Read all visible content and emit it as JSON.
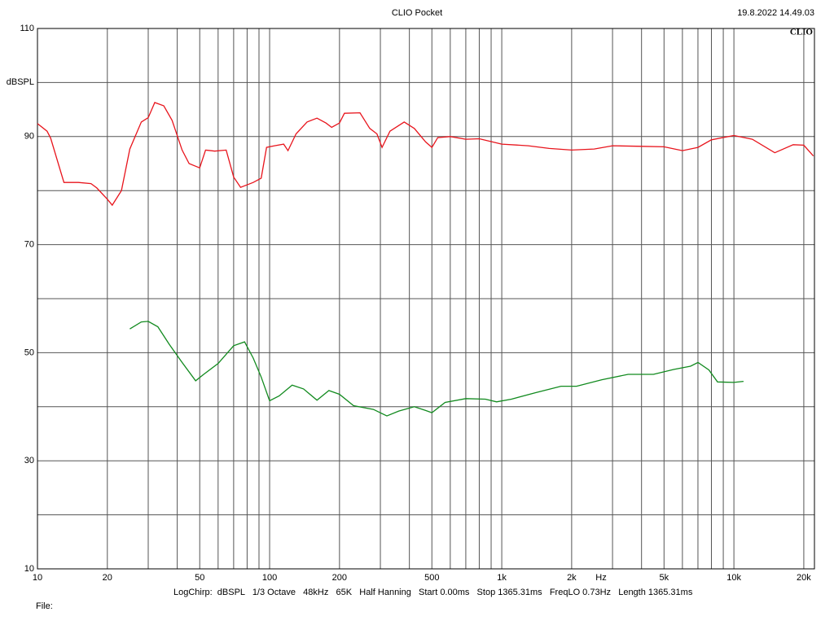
{
  "chart_data": {
    "type": "line",
    "title": "CLIO Pocket",
    "timestamp": "19.8.2022 14.49.03",
    "logo": "CLIO",
    "y_label": "dBSPL",
    "x_label": "Hz",
    "settings": "LogChirp:  dBSPL   1/3 Octave   48kHz   65K   Half Hanning   Start 0.00ms   Stop 1365.31ms   FreqLO 0.73Hz   Length 1365.31ms",
    "file_label": "File:",
    "xscale": "log",
    "xlim": [
      10,
      22230
    ],
    "ylim": [
      10,
      110
    ],
    "grid": true,
    "xticks": [
      10,
      20,
      50,
      100,
      200,
      500,
      {
        "value": 1000,
        "label": "1k"
      },
      {
        "value": 2000,
        "label": "2k"
      },
      {
        "value": 5000,
        "label": "5k"
      },
      {
        "value": 10000,
        "label": "10k"
      },
      {
        "value": 20000,
        "label": "20k"
      }
    ],
    "xminor": [
      30,
      40,
      60,
      70,
      80,
      90,
      300,
      400,
      600,
      700,
      800,
      900,
      3000,
      4000,
      6000,
      7000,
      8000,
      9000
    ],
    "yticks": [
      10,
      30,
      50,
      70,
      90,
      110
    ],
    "yminor": [
      20,
      40,
      60,
      80,
      100
    ],
    "series": [
      {
        "color": "#e8141c",
        "x": [
          10,
          11,
          11.4,
          13,
          15,
          17,
          18,
          20,
          21,
          23,
          25,
          28,
          30,
          32,
          35,
          38,
          42,
          45,
          50,
          53,
          58,
          65,
          70,
          75,
          85,
          92,
          97,
          105,
          115,
          120,
          130,
          145,
          160,
          175,
          185,
          200,
          210,
          245,
          270,
          290,
          305,
          330,
          380,
          420,
          470,
          500,
          530,
          600,
          700,
          800,
          1000,
          1300,
          1600,
          2000,
          2500,
          3000,
          4000,
          5000,
          6000,
          7000,
          8000,
          10000,
          12000,
          15000,
          18000,
          20000,
          22000
        ],
        "values": [
          92.4,
          91,
          89.7,
          81.5,
          81.5,
          81.3,
          80.5,
          78.4,
          77.3,
          80,
          87.7,
          92.7,
          93.5,
          96.3,
          95.7,
          93,
          87.5,
          85,
          84.2,
          87.5,
          87.3,
          87.5,
          82.5,
          80.6,
          81.5,
          82.3,
          88,
          88.3,
          88.6,
          87.4,
          90.5,
          92.7,
          93.4,
          92.5,
          91.7,
          92.5,
          94.3,
          94.4,
          91.5,
          90.5,
          88,
          91,
          92.7,
          91.5,
          89,
          88,
          89.8,
          90,
          89.5,
          89.6,
          88.6,
          88.3,
          87.8,
          87.5,
          87.7,
          88.3,
          88.2,
          88.1,
          87.4,
          88,
          89.4,
          90.2,
          89.5,
          87,
          88.5,
          88.4,
          86.4
        ]
      },
      {
        "color": "#118a1e",
        "x": [
          25,
          28,
          30,
          33,
          37,
          42,
          48,
          52,
          60,
          70,
          78,
          85,
          92,
          100,
          110,
          125,
          140,
          160,
          180,
          200,
          230,
          280,
          320,
          360,
          420,
          470,
          500,
          570,
          700,
          850,
          950,
          1100,
          1400,
          1800,
          2100,
          2700,
          3500,
          4500,
          5500,
          6500,
          7000,
          7800,
          8500,
          10000,
          11000
        ],
        "values": [
          54.4,
          55.7,
          55.8,
          54.8,
          51.5,
          48.2,
          44.8,
          46,
          48,
          51.3,
          52,
          49,
          45.5,
          41.1,
          42,
          44,
          43.3,
          41.2,
          43,
          42.3,
          40.2,
          39.5,
          38.3,
          39.2,
          40,
          39.3,
          38.9,
          40.8,
          41.5,
          41.4,
          40.9,
          41.4,
          42.6,
          43.8,
          43.8,
          45,
          46,
          46,
          46.9,
          47.5,
          48.2,
          46.8,
          44.6,
          44.5,
          44.7
        ]
      }
    ]
  }
}
